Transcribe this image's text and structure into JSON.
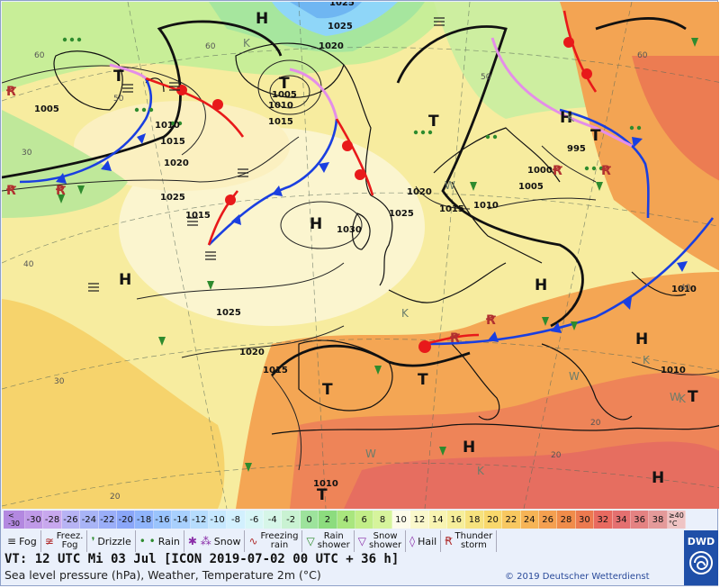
{
  "map": {
    "pressure_centers": [
      {
        "label": "H"
      },
      {
        "label": "T"
      },
      {
        "label": "T"
      },
      {
        "label": "T"
      },
      {
        "label": "H"
      },
      {
        "label": "H"
      },
      {
        "label": "H"
      },
      {
        "label": "T"
      },
      {
        "label": "T"
      },
      {
        "label": "T"
      },
      {
        "label": "H"
      },
      {
        "label": "H"
      },
      {
        "label": "T"
      },
      {
        "label": "H"
      },
      {
        "label": "T"
      },
      {
        "label": "H"
      }
    ],
    "k_labels": [
      "K",
      "K",
      "K",
      "K",
      "K",
      "K"
    ],
    "w_labels": [
      "W",
      "W",
      "W",
      "W"
    ],
    "isobar_labels": [
      "1025",
      "1020",
      "1005",
      "1005",
      "1010",
      "1015",
      "1010",
      "1015",
      "1020",
      "1025",
      "1025",
      "1030",
      "1025",
      "1020",
      "1015",
      "1010",
      "1005",
      "995",
      "1000",
      "1010",
      "1015",
      "1025",
      "1020",
      "1015",
      "1010",
      "1010"
    ],
    "temp_labels": [
      "60",
      "60",
      "60",
      "50",
      "40",
      "30",
      "20",
      "20",
      "50",
      "40",
      "30",
      "20"
    ]
  },
  "scale": {
    "cells": [
      {
        "label": "<\n-30",
        "color": "#b388e0"
      },
      {
        "label": "-30",
        "color": "#c09ae8"
      },
      {
        "label": "-28",
        "color": "#c8a8ee"
      },
      {
        "label": "-26",
        "color": "#b7b3f4"
      },
      {
        "label": "-24",
        "color": "#a8b4f6"
      },
      {
        "label": "-22",
        "color": "#9aaef8"
      },
      {
        "label": "-20",
        "color": "#8aa6f8"
      },
      {
        "label": "-18",
        "color": "#8fb4fb"
      },
      {
        "label": "-16",
        "color": "#9ac4fc"
      },
      {
        "label": "-14",
        "color": "#a8d0fd"
      },
      {
        "label": "-12",
        "color": "#b6dcfd"
      },
      {
        "label": "-10",
        "color": "#c6e8fe"
      },
      {
        "label": "-8",
        "color": "#d2f0fe"
      },
      {
        "label": "-6",
        "color": "#d8f6f6"
      },
      {
        "label": "-4",
        "color": "#d6f6e8"
      },
      {
        "label": "-2",
        "color": "#c9f2d2"
      },
      {
        "label": "0",
        "color": "#9de39c"
      },
      {
        "label": "2",
        "color": "#8cdc7e"
      },
      {
        "label": "4",
        "color": "#a9e67e"
      },
      {
        "label": "6",
        "color": "#c2ee88"
      },
      {
        "label": "8",
        "color": "#d6f49c"
      },
      {
        "label": "10",
        "color": "#fdfbea"
      },
      {
        "label": "12",
        "color": "#faf8cc"
      },
      {
        "label": "14",
        "color": "#f8f4b2"
      },
      {
        "label": "16",
        "color": "#f6ee9a"
      },
      {
        "label": "18",
        "color": "#f6e27e"
      },
      {
        "label": "20",
        "color": "#f8d86c"
      },
      {
        "label": "22",
        "color": "#f8c860"
      },
      {
        "label": "24",
        "color": "#f6b456"
      },
      {
        "label": "26",
        "color": "#f4a050"
      },
      {
        "label": "28",
        "color": "#f08c4a"
      },
      {
        "label": "30",
        "color": "#ec7a50"
      },
      {
        "label": "32",
        "color": "#e86a60"
      },
      {
        "label": "34",
        "color": "#e47070"
      },
      {
        "label": "36",
        "color": "#e48282"
      },
      {
        "label": "38",
        "color": "#e49a9a"
      },
      {
        "label": "≥40\n°C",
        "color": "#efc4c4"
      }
    ]
  },
  "legend": {
    "items": [
      {
        "label": "Fog",
        "icon": "fog-icon",
        "glyph": "≡"
      },
      {
        "label": "Freez.\nFog",
        "icon": "freezing-fog-icon",
        "glyph": "≆"
      },
      {
        "label": "Drizzle",
        "icon": "drizzle-icon",
        "glyph": "❜"
      },
      {
        "label": "Rain",
        "icon": "rain-icon",
        "glyph": "• •"
      },
      {
        "label": "Snow",
        "icon": "snow-icon",
        "glyph": "✱ ⁂"
      },
      {
        "label": "Freezing\nrain",
        "icon": "freezing-rain-icon",
        "glyph": "∿"
      },
      {
        "label": "Rain\nshower",
        "icon": "rain-shower-icon",
        "glyph": "▽"
      },
      {
        "label": "Snow\nshower",
        "icon": "snow-shower-icon",
        "glyph": "▽"
      },
      {
        "label": "Hail",
        "icon": "hail-icon",
        "glyph": "◊"
      },
      {
        "label": "Thunder\nstorm",
        "icon": "thunderstorm-icon",
        "glyph": "Ꞧ"
      }
    ]
  },
  "footer": {
    "valid_time": "VT: 12 UTC Mi  03 Jul [ICON 2019-07-02  00 UTC + 36 h]",
    "subtitle": "Sea level pressure (hPa), Weather, Temperature 2m (°C)",
    "copyright": "© 2019 Deutscher Wetterdienst",
    "logo_text": "DWD"
  },
  "colors": {
    "cold_front": "#1a3fe0",
    "warm_front": "#e8191a",
    "occlusion": "#e48ee8",
    "isobar": "#222222",
    "trough": "#111111"
  }
}
